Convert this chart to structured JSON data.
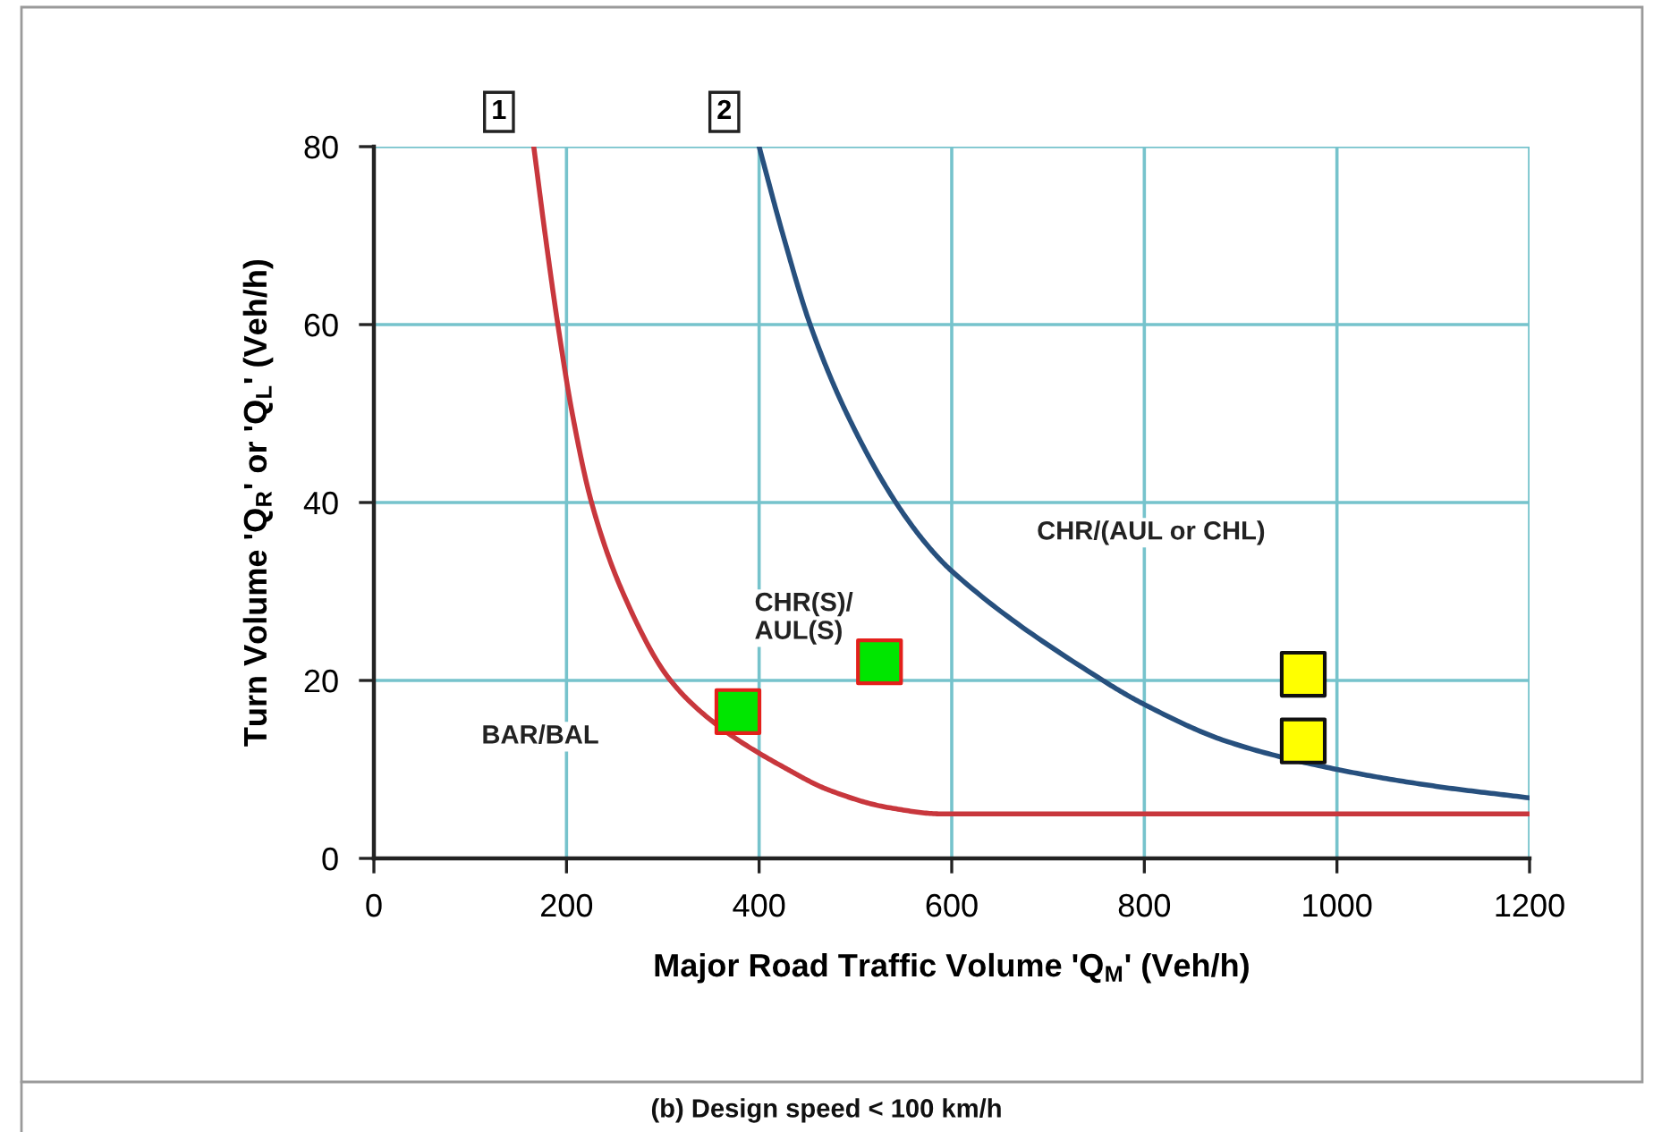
{
  "chart_data": {
    "type": "line",
    "xlabel": "Major Road Traffic Volume 'Q$_{M}$' (Veh/h)",
    "ylabel": "Turn Volume 'Q$_{R}$' or 'Q$_{L}$' (Veh/h)",
    "series": [
      {
        "name": "1",
        "color": "#c8373d",
        "marker": "none",
        "line_style": "solid",
        "x": [
          166,
          178,
          191,
          206,
          226,
          258,
          308,
          360,
          428,
          472,
          535,
          590,
          700,
          800,
          900,
          1000,
          1100,
          1200
        ],
        "values": [
          80,
          70,
          60,
          50,
          40,
          30,
          20,
          14.7,
          10.1,
          7.7,
          5.7,
          5.0,
          5,
          5,
          5,
          5,
          5,
          5
        ]
      },
      {
        "name": "2",
        "color": "#27507e",
        "marker": "none",
        "line_style": "solid",
        "x": [
          400,
          425,
          453,
          491,
          542,
          577,
          600,
          757,
          800,
          887,
          1000,
          1103,
          1200
        ],
        "values": [
          80,
          70,
          60,
          50,
          40,
          34.9,
          32.3,
          20,
          17.3,
          13.1,
          10.0,
          8.1,
          6.8
        ]
      },
      {
        "type": "scatter",
        "color": "#00e600",
        "marker": "square",
        "x": [
          378,
          525
        ],
        "values": [
          16.5,
          22.1
        ]
      },
      {
        "type": "scatter",
        "color": "#ffff00",
        "marker": "square",
        "x": [
          965,
          965
        ],
        "values": [
          20.7,
          13.2
        ]
      }
    ],
    "xlim": [
      0,
      1200
    ],
    "xticks": [
      0,
      200,
      400,
      600,
      800,
      1000,
      1200
    ],
    "ylim": [
      0,
      80
    ],
    "yticks": [
      0,
      20,
      40,
      60,
      80
    ],
    "grid": true,
    "annotations": [
      "BAR/BAL",
      "CHR(S)/\nAUL(S)",
      "CHR/(AUL or CHL)",
      "(b) Design speed < 100 km/h"
    ]
  }
}
